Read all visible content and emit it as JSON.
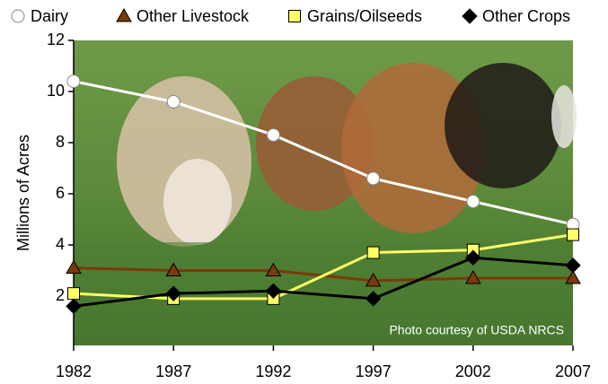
{
  "chart_data": {
    "type": "line",
    "x": [
      1982,
      1987,
      1992,
      1997,
      2002,
      2007
    ],
    "xlim": [
      1982,
      2007
    ],
    "xticks": [
      1982,
      1987,
      1992,
      1997,
      2002,
      2007
    ],
    "ylim": [
      0,
      12
    ],
    "yticks": [
      2,
      4,
      6,
      8,
      10,
      12
    ],
    "ylabel": "Millions of Acres",
    "annotation": "Photo courtesy of USDA NRCS",
    "legend": "top",
    "series": [
      {
        "name": "Dairy",
        "color": "#ffffff",
        "marker": "circle",
        "values": [
          10.4,
          9.6,
          8.3,
          6.6,
          5.7,
          4.8
        ]
      },
      {
        "name": "Other Livestock",
        "color": "#7a3a0a",
        "marker": "triangle",
        "values": [
          3.1,
          3.0,
          3.0,
          2.6,
          2.7,
          2.7
        ]
      },
      {
        "name": "Grains/Oilseeds",
        "color": "#ffff66",
        "marker": "square",
        "values": [
          2.1,
          1.9,
          1.9,
          3.7,
          3.8,
          4.4
        ]
      },
      {
        "name": "Other Crops",
        "color": "#000000",
        "marker": "diamond",
        "values": [
          1.6,
          2.1,
          2.2,
          1.9,
          3.5,
          3.2
        ]
      }
    ]
  }
}
